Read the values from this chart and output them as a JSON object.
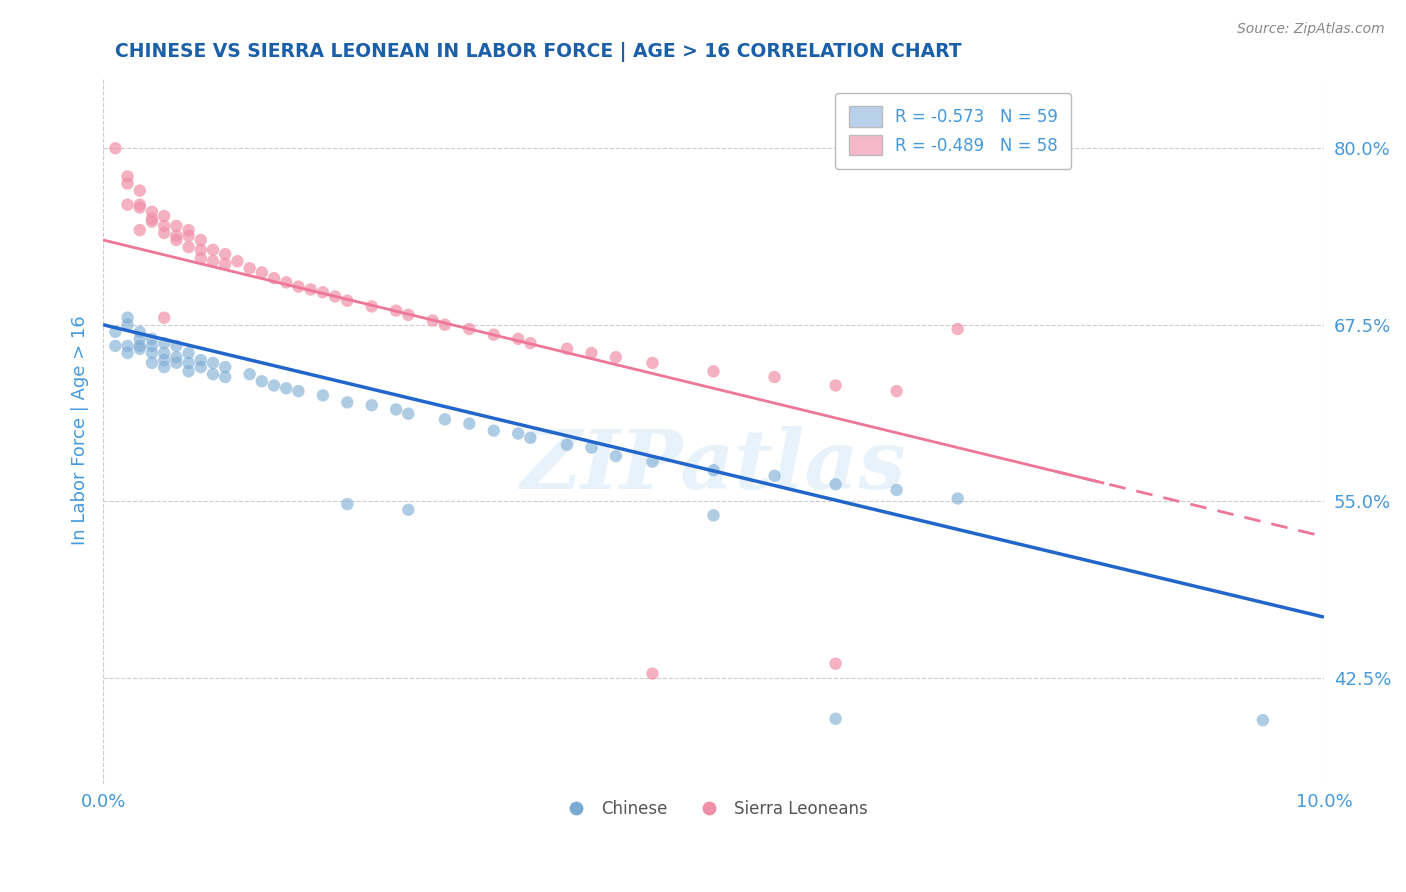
{
  "title": "CHINESE VS SIERRA LEONEAN IN LABOR FORCE | AGE > 16 CORRELATION CHART",
  "source_text": "Source: ZipAtlas.com",
  "ylabel": "In Labor Force | Age > 16",
  "xlim": [
    0.0,
    0.1
  ],
  "ylim": [
    0.35,
    0.85
  ],
  "yticks": [
    0.425,
    0.55,
    0.675,
    0.8
  ],
  "ytick_labels": [
    "42.5%",
    "55.0%",
    "67.5%",
    "80.0%"
  ],
  "xticks": [
    0.0,
    0.1
  ],
  "xtick_labels": [
    "0.0%",
    "10.0%"
  ],
  "title_color": "#1a5fa8",
  "axis_color": "#4499dd",
  "watermark_text": "ZIPatlas",
  "legend_entries": [
    {
      "label": "R = -0.573   N = 59",
      "color": "#b8d0ea"
    },
    {
      "label": "R = -0.489   N = 58",
      "color": "#f4b8c8"
    }
  ],
  "chinese_color": "#7aaad4",
  "sierraleone_color": "#f090a8",
  "trendline_chinese_color": "#2266cc",
  "trendline_sierra_color": "#ee7799",
  "background_color": "#ffffff",
  "grid_color": "#cccccc",
  "trendline_chinese_x0": 0.0,
  "trendline_chinese_y0": 0.675,
  "trendline_chinese_x1": 0.1,
  "trendline_chinese_y1": 0.468,
  "trendline_sierra_x0": 0.0,
  "trendline_sierra_y0": 0.735,
  "trendline_sierra_x1": 0.1,
  "trendline_sierra_y1": 0.525,
  "chinese_scatter": [
    [
      0.001,
      0.67
    ],
    [
      0.001,
      0.66
    ],
    [
      0.002,
      0.675
    ],
    [
      0.002,
      0.66
    ],
    [
      0.002,
      0.68
    ],
    [
      0.002,
      0.655
    ],
    [
      0.003,
      0.67
    ],
    [
      0.003,
      0.665
    ],
    [
      0.003,
      0.66
    ],
    [
      0.003,
      0.658
    ],
    [
      0.004,
      0.665
    ],
    [
      0.004,
      0.66
    ],
    [
      0.004,
      0.655
    ],
    [
      0.004,
      0.648
    ],
    [
      0.005,
      0.662
    ],
    [
      0.005,
      0.655
    ],
    [
      0.005,
      0.65
    ],
    [
      0.005,
      0.645
    ],
    [
      0.006,
      0.66
    ],
    [
      0.006,
      0.652
    ],
    [
      0.006,
      0.648
    ],
    [
      0.007,
      0.655
    ],
    [
      0.007,
      0.648
    ],
    [
      0.007,
      0.642
    ],
    [
      0.008,
      0.65
    ],
    [
      0.008,
      0.645
    ],
    [
      0.009,
      0.648
    ],
    [
      0.009,
      0.64
    ],
    [
      0.01,
      0.645
    ],
    [
      0.01,
      0.638
    ],
    [
      0.012,
      0.64
    ],
    [
      0.013,
      0.635
    ],
    [
      0.014,
      0.632
    ],
    [
      0.015,
      0.63
    ],
    [
      0.016,
      0.628
    ],
    [
      0.018,
      0.625
    ],
    [
      0.02,
      0.62
    ],
    [
      0.022,
      0.618
    ],
    [
      0.024,
      0.615
    ],
    [
      0.025,
      0.612
    ],
    [
      0.028,
      0.608
    ],
    [
      0.03,
      0.605
    ],
    [
      0.032,
      0.6
    ],
    [
      0.034,
      0.598
    ],
    [
      0.035,
      0.595
    ],
    [
      0.038,
      0.59
    ],
    [
      0.04,
      0.588
    ],
    [
      0.042,
      0.582
    ],
    [
      0.045,
      0.578
    ],
    [
      0.05,
      0.572
    ],
    [
      0.055,
      0.568
    ],
    [
      0.06,
      0.562
    ],
    [
      0.065,
      0.558
    ],
    [
      0.07,
      0.552
    ],
    [
      0.02,
      0.548
    ],
    [
      0.025,
      0.544
    ],
    [
      0.05,
      0.54
    ],
    [
      0.06,
      0.396
    ],
    [
      0.095,
      0.395
    ]
  ],
  "sierra_scatter": [
    [
      0.001,
      0.8
    ],
    [
      0.002,
      0.775
    ],
    [
      0.002,
      0.78
    ],
    [
      0.002,
      0.76
    ],
    [
      0.003,
      0.77
    ],
    [
      0.003,
      0.76
    ],
    [
      0.003,
      0.758
    ],
    [
      0.004,
      0.755
    ],
    [
      0.004,
      0.75
    ],
    [
      0.004,
      0.748
    ],
    [
      0.005,
      0.752
    ],
    [
      0.005,
      0.745
    ],
    [
      0.005,
      0.74
    ],
    [
      0.006,
      0.745
    ],
    [
      0.006,
      0.738
    ],
    [
      0.006,
      0.735
    ],
    [
      0.007,
      0.742
    ],
    [
      0.007,
      0.738
    ],
    [
      0.007,
      0.73
    ],
    [
      0.008,
      0.735
    ],
    [
      0.008,
      0.728
    ],
    [
      0.008,
      0.722
    ],
    [
      0.009,
      0.728
    ],
    [
      0.009,
      0.72
    ],
    [
      0.01,
      0.725
    ],
    [
      0.01,
      0.718
    ],
    [
      0.011,
      0.72
    ],
    [
      0.012,
      0.715
    ],
    [
      0.013,
      0.712
    ],
    [
      0.014,
      0.708
    ],
    [
      0.015,
      0.705
    ],
    [
      0.016,
      0.702
    ],
    [
      0.017,
      0.7
    ],
    [
      0.018,
      0.698
    ],
    [
      0.019,
      0.695
    ],
    [
      0.02,
      0.692
    ],
    [
      0.022,
      0.688
    ],
    [
      0.024,
      0.685
    ],
    [
      0.025,
      0.682
    ],
    [
      0.027,
      0.678
    ],
    [
      0.028,
      0.675
    ],
    [
      0.03,
      0.672
    ],
    [
      0.032,
      0.668
    ],
    [
      0.034,
      0.665
    ],
    [
      0.035,
      0.662
    ],
    [
      0.038,
      0.658
    ],
    [
      0.04,
      0.655
    ],
    [
      0.042,
      0.652
    ],
    [
      0.045,
      0.648
    ],
    [
      0.05,
      0.642
    ],
    [
      0.055,
      0.638
    ],
    [
      0.06,
      0.632
    ],
    [
      0.065,
      0.628
    ],
    [
      0.005,
      0.68
    ],
    [
      0.003,
      0.742
    ],
    [
      0.045,
      0.428
    ],
    [
      0.06,
      0.435
    ],
    [
      0.07,
      0.672
    ]
  ]
}
